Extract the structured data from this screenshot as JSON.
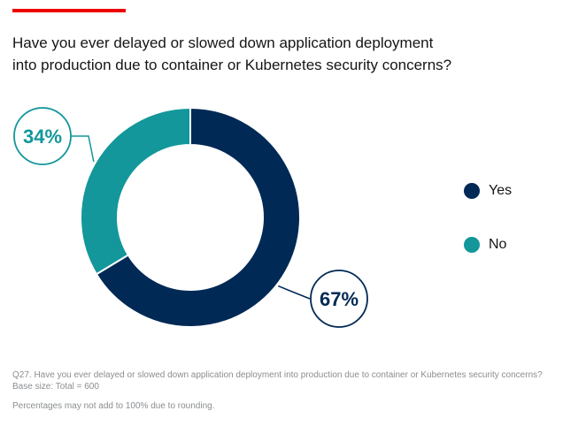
{
  "title": {
    "line1": "Have you ever delayed or slowed down application deployment",
    "line2": "into production due to container or Kubernetes security concerns?"
  },
  "colors": {
    "accent": "#ee0000",
    "yes": "#002955",
    "no": "#13979a"
  },
  "chart_data": {
    "type": "pie",
    "subtype": "donut",
    "slices": [
      {
        "name": "Yes",
        "value": 67,
        "label": "67%",
        "color": "#002955"
      },
      {
        "name": "No",
        "value": 34,
        "label": "34%",
        "color": "#13979a"
      }
    ],
    "legend_position": "right"
  },
  "legend": [
    {
      "label": "Yes",
      "color": "#002955"
    },
    {
      "label": "No",
      "color": "#13979a"
    }
  ],
  "footnotes": {
    "question": "Q27. Have you ever delayed or slowed down application deployment into production due to container or Kubernetes security concerns?",
    "base": "Base size: Total = 600",
    "rounding": "Percentages may not add to 100% due to rounding."
  }
}
